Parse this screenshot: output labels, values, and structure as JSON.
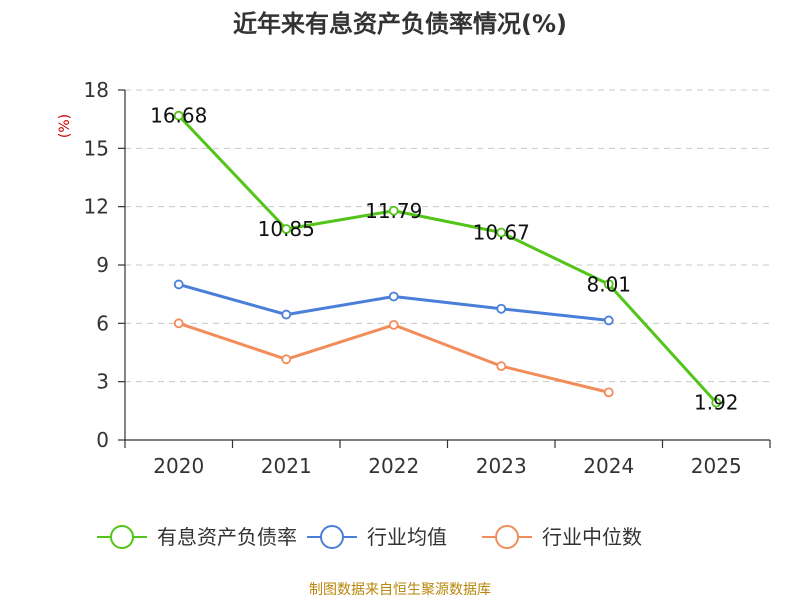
{
  "chart_data": {
    "type": "line",
    "title": "近年来有息资产负债率情况(%)",
    "ylabel": "(%)",
    "xlabel": "",
    "categories": [
      "2020",
      "2021",
      "2022",
      "2023",
      "2024",
      "2025"
    ],
    "ylim": [
      0,
      18
    ],
    "yticks": [
      0,
      3,
      6,
      9,
      12,
      15,
      18
    ],
    "grid": true,
    "legend_position": "bottom",
    "series": [
      {
        "name": "有息资产负债率",
        "color": "#52c41a",
        "values": [
          16.68,
          10.85,
          11.79,
          10.67,
          8.01,
          1.92
        ],
        "labels": [
          "16.68",
          "10.85",
          "11.79",
          "10.67",
          "8.01",
          "1.92"
        ],
        "show_labels": true
      },
      {
        "name": "行业均值",
        "color": "#4a7fd9",
        "values": [
          8.0,
          6.45,
          7.38,
          6.75,
          6.15,
          null
        ],
        "show_labels": false
      },
      {
        "name": "行业中位数",
        "color": "#f28c5a",
        "values": [
          6.0,
          4.15,
          5.92,
          3.8,
          2.45,
          null
        ],
        "show_labels": false
      }
    ]
  },
  "footer": {
    "source": "制图数据来自恒生聚源数据库"
  }
}
